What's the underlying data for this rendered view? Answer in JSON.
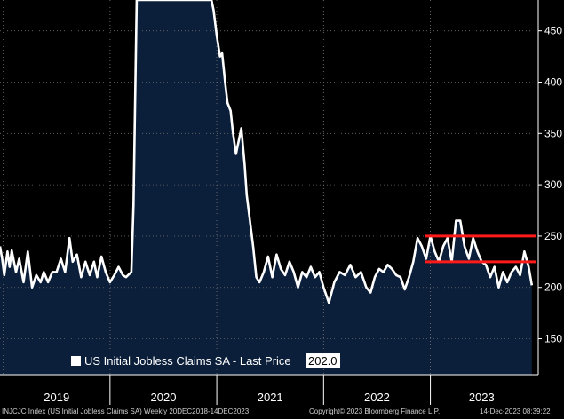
{
  "chart_data": {
    "type": "area",
    "title": "",
    "xlabel": "",
    "ylabel": "",
    "ylim": [
      115,
      480
    ],
    "y_ticks": [
      150,
      200,
      250,
      300,
      350,
      400,
      450
    ],
    "x_tick_labels": [
      "2019",
      "2020",
      "2021",
      "2022",
      "2023"
    ],
    "x_start": 2018.97,
    "x_end": 2023.96,
    "grid": true,
    "fill_color": "#0b1f3a",
    "line_color": "#ffffff",
    "reference_line_color": "#ff1a1a",
    "reference_lines": [
      250,
      225
    ],
    "reference_lines_x_start": 2022.95,
    "series": [
      {
        "name": "US Initial Jobless Claims SA - Last Price",
        "x": [
          2018.97,
          2018.99,
          2019.01,
          2019.04,
          2019.06,
          2019.08,
          2019.12,
          2019.15,
          2019.19,
          2019.23,
          2019.27,
          2019.31,
          2019.35,
          2019.38,
          2019.42,
          2019.46,
          2019.5,
          2019.54,
          2019.58,
          2019.62,
          2019.65,
          2019.69,
          2019.73,
          2019.77,
          2019.81,
          2019.85,
          2019.88,
          2019.92,
          2019.96,
          2020.0,
          2020.04,
          2020.08,
          2020.12,
          2020.15,
          2020.18,
          2020.2,
          2020.22,
          2020.25,
          2020.95,
          2020.97,
          2021.0,
          2021.03,
          2021.05,
          2021.08,
          2021.1,
          2021.13,
          2021.15,
          2021.18,
          2021.2,
          2021.23,
          2021.26,
          2021.28,
          2021.31,
          2021.34,
          2021.37,
          2021.4,
          2021.44,
          2021.48,
          2021.52,
          2021.56,
          2021.6,
          2021.64,
          2021.68,
          2021.72,
          2021.76,
          2021.8,
          2021.84,
          2021.88,
          2021.92,
          2021.96,
          2022.0,
          2022.05,
          2022.1,
          2022.15,
          2022.2,
          2022.25,
          2022.3,
          2022.35,
          2022.4,
          2022.44,
          2022.48,
          2022.52,
          2022.56,
          2022.6,
          2022.64,
          2022.68,
          2022.72,
          2022.76,
          2022.8,
          2022.84,
          2022.88,
          2022.92,
          2022.96,
          2023.0,
          2023.04,
          2023.08,
          2023.12,
          2023.16,
          2023.2,
          2023.24,
          2023.28,
          2023.32,
          2023.36,
          2023.4,
          2023.44,
          2023.48,
          2023.52,
          2023.56,
          2023.6,
          2023.64,
          2023.68,
          2023.72,
          2023.76,
          2023.8,
          2023.84,
          2023.88,
          2023.92,
          2023.95
        ],
        "values": [
          240,
          228,
          212,
          235,
          220,
          236,
          215,
          228,
          205,
          235,
          200,
          212,
          205,
          215,
          205,
          215,
          215,
          228,
          215,
          248,
          225,
          232,
          210,
          225,
          212,
          225,
          210,
          230,
          215,
          205,
          212,
          220,
          212,
          210,
          213,
          215,
          280,
          480,
          480,
          470,
          445,
          425,
          428,
          398,
          380,
          372,
          352,
          330,
          340,
          355,
          320,
          290,
          265,
          240,
          210,
          205,
          215,
          230,
          210,
          232,
          218,
          212,
          225,
          215,
          200,
          215,
          210,
          220,
          210,
          215,
          200,
          185,
          205,
          215,
          212,
          222,
          210,
          215,
          200,
          195,
          210,
          218,
          215,
          222,
          218,
          212,
          210,
          198,
          210,
          225,
          248,
          240,
          228,
          250,
          235,
          225,
          240,
          248,
          225,
          265,
          265,
          240,
          228,
          248,
          235,
          225,
          222,
          210,
          220,
          200,
          215,
          205,
          215,
          220,
          212,
          235,
          220,
          202
        ]
      }
    ]
  },
  "legend": {
    "label": "US Initial Jobless Claims SA - Last Price",
    "value": "202.0"
  },
  "footer": {
    "left": "INJCJC Index (US Initial Jobless Claims SA) Weekly 20DEC2018-14DEC2023",
    "middle": "Copyright© 2023 Bloomberg Finance L.P.",
    "right": "14-Dec-2023 08:39:22"
  }
}
